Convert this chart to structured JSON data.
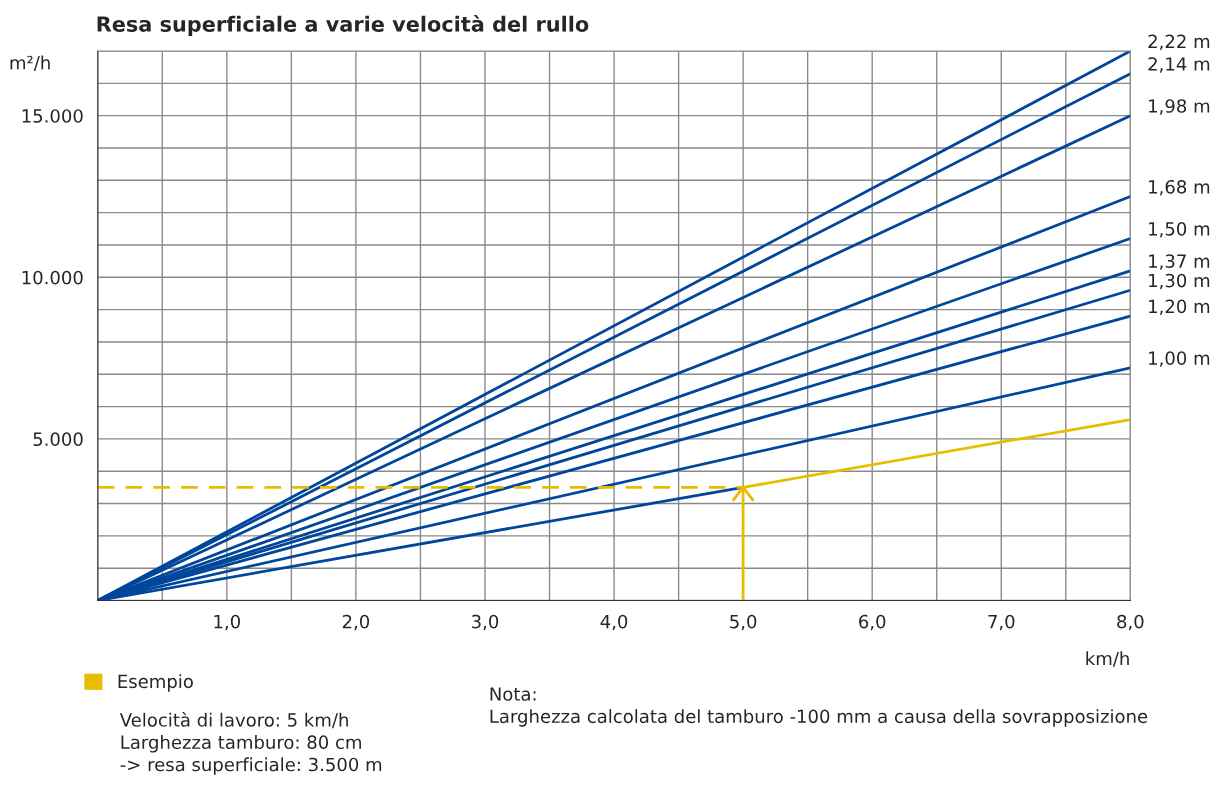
{
  "chart_data": {
    "type": "line",
    "title": "Resa superficiale a varie velocità del rullo",
    "xlabel": "km/h",
    "ylabel": "m²/h",
    "xlim": [
      0,
      8
    ],
    "ylim": [
      0,
      17000
    ],
    "xticks": [
      {
        "value": 0,
        "label": null
      },
      {
        "value": 0.5,
        "label": null
      },
      {
        "value": 1,
        "label": "1,0"
      },
      {
        "value": 1.5,
        "label": null
      },
      {
        "value": 2,
        "label": "2,0"
      },
      {
        "value": 2.5,
        "label": null
      },
      {
        "value": 3,
        "label": "3,0"
      },
      {
        "value": 3.5,
        "label": null
      },
      {
        "value": 4,
        "label": "4,0"
      },
      {
        "value": 4.5,
        "label": null
      },
      {
        "value": 5,
        "label": "5,0"
      },
      {
        "value": 5.5,
        "label": null
      },
      {
        "value": 6,
        "label": "6,0"
      },
      {
        "value": 6.5,
        "label": null
      },
      {
        "value": 7,
        "label": "7,0"
      },
      {
        "value": 7.5,
        "label": null
      },
      {
        "value": 8,
        "label": "8,0"
      }
    ],
    "yticks": [
      {
        "value": 0,
        "label": null
      },
      {
        "value": 1000,
        "label": null
      },
      {
        "value": 2000,
        "label": null
      },
      {
        "value": 3000,
        "label": null
      },
      {
        "value": 4000,
        "label": null
      },
      {
        "value": 5000,
        "label": "5.000"
      },
      {
        "value": 6000,
        "label": null
      },
      {
        "value": 7000,
        "label": null
      },
      {
        "value": 8000,
        "label": null
      },
      {
        "value": 9000,
        "label": null
      },
      {
        "value": 10000,
        "label": "10.000"
      },
      {
        "value": 11000,
        "label": null
      },
      {
        "value": 12000,
        "label": null
      },
      {
        "value": 13000,
        "label": null
      },
      {
        "value": 14000,
        "label": null
      },
      {
        "value": 15000,
        "label": "15.000"
      },
      {
        "value": 16000,
        "label": null
      },
      {
        "value": 17000,
        "label": null
      }
    ],
    "grid": true,
    "legend": "bottom left",
    "line_style": "solid",
    "marker": "none",
    "series": [
      {
        "name": "2,22 m",
        "color": "#00469b",
        "x": [
          0,
          8
        ],
        "values": [
          0,
          17000
        ]
      },
      {
        "name": "2,14 m",
        "color": "#00469b",
        "x": [
          0,
          8
        ],
        "values": [
          0,
          16300
        ]
      },
      {
        "name": "1,98 m",
        "color": "#00469b",
        "x": [
          0,
          8
        ],
        "values": [
          0,
          15000
        ]
      },
      {
        "name": "1,68 m",
        "color": "#00469b",
        "x": [
          0,
          8
        ],
        "values": [
          0,
          12500
        ]
      },
      {
        "name": "1,50 m",
        "color": "#00469b",
        "x": [
          0,
          8
        ],
        "values": [
          0,
          11200
        ]
      },
      {
        "name": "1,37 m",
        "color": "#00469b",
        "x": [
          0,
          8
        ],
        "values": [
          0,
          10200
        ]
      },
      {
        "name": "1,30 m",
        "color": "#00469b",
        "x": [
          0,
          8
        ],
        "values": [
          0,
          9600
        ]
      },
      {
        "name": "1,20 m",
        "color": "#00469b",
        "x": [
          0,
          8
        ],
        "values": [
          0,
          8800
        ]
      },
      {
        "name": "1,00 m",
        "color": "#00469b",
        "x": [
          0,
          8
        ],
        "values": [
          0,
          7200
        ]
      },
      {
        "color": "#00469b",
        "x": [
          0,
          5
        ],
        "values": [
          0,
          3500
        ]
      },
      {
        "name": "Esempio",
        "color": "#e6bd00",
        "x": [
          5,
          8
        ],
        "values": [
          3500,
          5600
        ]
      },
      {
        "color": "#e6bd00",
        "x": [
          0,
          5
        ],
        "values": [
          3500,
          3500
        ],
        "line_style": "dashed"
      },
      {
        "color": "#e6bd00",
        "x": [
          5,
          5
        ],
        "values": [
          0,
          3500
        ]
      }
    ],
    "annotations": [
      "Velocità di lavoro: 5 km/h\nLarghezza tamburo: 80 cm\n-> resa superficiale: 3.500 m",
      "Nota:\nLarghezza calcolata del tamburo -100 mm a causa della sovrapposizione"
    ]
  }
}
